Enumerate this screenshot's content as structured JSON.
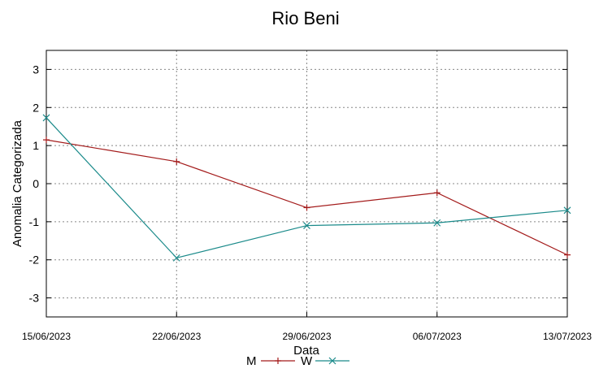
{
  "chart_data": {
    "type": "line",
    "title": "Rio Beni",
    "xlabel": "Data",
    "ylabel": "Anomalia Categorizada",
    "categories": [
      "15/06/2023",
      "22/06/2023",
      "29/06/2023",
      "06/07/2023",
      "13/07/2023"
    ],
    "ylim": [
      -3.5,
      3.5
    ],
    "yticks": [
      -3,
      -2,
      -1,
      0,
      1,
      2,
      3
    ],
    "grid": true,
    "legend_position": "bottom-center",
    "series": [
      {
        "name": "M",
        "color": "#a31a1a",
        "marker": "plus",
        "values": [
          1.15,
          0.58,
          -0.63,
          -0.24,
          -1.87
        ]
      },
      {
        "name": "W",
        "color": "#1a8a8a",
        "marker": "cross",
        "values": [
          1.73,
          -1.95,
          -1.1,
          -1.03,
          -0.7
        ]
      }
    ]
  }
}
